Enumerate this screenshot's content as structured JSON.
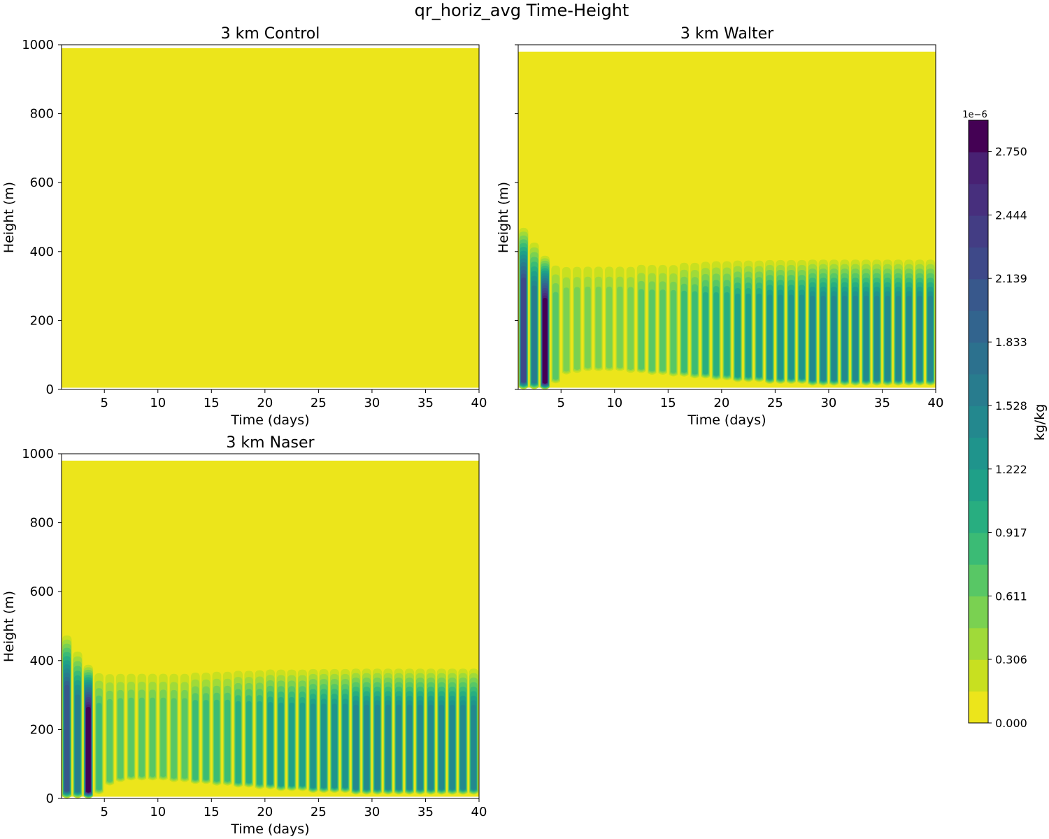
{
  "figure": {
    "title": "qr_horiz_avg Time-Height"
  },
  "colors": {
    "levels": [
      "#ece51b",
      "#c8e020",
      "#a0da39",
      "#7ad151",
      "#58c765",
      "#3bbb75",
      "#28ae80",
      "#1fa088",
      "#1f948c",
      "#23888e",
      "#287c8e",
      "#2c718e",
      "#32648e",
      "#38588c",
      "#3e4989",
      "#433d84",
      "#472f7d",
      "#482173",
      "#440154"
    ],
    "frame": "#000000",
    "background": "#ffffff"
  },
  "chart_data": [
    {
      "type": "contourf",
      "title": "3 km Control",
      "xlabel": "Time (days)",
      "ylabel": "Height (m)",
      "xlim": [
        1,
        40
      ],
      "ylim": [
        0,
        1000
      ],
      "xticks": [
        "5",
        "10",
        "15",
        "20",
        "25",
        "30",
        "35",
        "40"
      ],
      "yticks": [
        "0",
        "200",
        "400",
        "600",
        "800",
        "1000"
      ],
      "show_ytick_labels": true,
      "data_height_range": [
        5,
        990
      ],
      "cycles": []
    },
    {
      "type": "contourf",
      "title": "3 km Walter",
      "xlabel": "Time (days)",
      "ylabel": "Height (m)",
      "xlim": [
        1,
        40
      ],
      "ylim": [
        0,
        1000
      ],
      "xticks": [
        "5",
        "10",
        "15",
        "20",
        "25",
        "30",
        "35",
        "40"
      ],
      "yticks": [
        "0",
        "200",
        "400",
        "600",
        "800",
        "1000"
      ],
      "show_ytick_labels": false,
      "data_height_range": [
        5,
        980
      ],
      "cycles": [
        {
          "day": 1.5,
          "top": 480,
          "base": 5,
          "peak": 14
        },
        {
          "day": 2.5,
          "top": 440,
          "base": 5,
          "peak": 10
        },
        {
          "day": 3.5,
          "top": 395,
          "base": 5,
          "peak": 18
        },
        {
          "day": 4.5,
          "top": 385,
          "base": 20,
          "peak": 4
        },
        {
          "day": 5.5,
          "top": 385,
          "base": 45,
          "peak": 3
        },
        {
          "day": 6.5,
          "top": 385,
          "base": 50,
          "peak": 3
        },
        {
          "day": 7.5,
          "top": 385,
          "base": 55,
          "peak": 3
        },
        {
          "day": 8.5,
          "top": 385,
          "base": 55,
          "peak": 3
        },
        {
          "day": 9.5,
          "top": 385,
          "base": 55,
          "peak": 3
        },
        {
          "day": 10.5,
          "top": 385,
          "base": 55,
          "peak": 3
        },
        {
          "day": 11.5,
          "top": 385,
          "base": 50,
          "peak": 3
        },
        {
          "day": 12.5,
          "top": 385,
          "base": 50,
          "peak": 4
        },
        {
          "day": 13.5,
          "top": 385,
          "base": 45,
          "peak": 4
        },
        {
          "day": 14.5,
          "top": 385,
          "base": 45,
          "peak": 4
        },
        {
          "day": 15.5,
          "top": 385,
          "base": 40,
          "peak": 4
        },
        {
          "day": 16.5,
          "top": 388,
          "base": 40,
          "peak": 5
        },
        {
          "day": 17.5,
          "top": 388,
          "base": 35,
          "peak": 5
        },
        {
          "day": 18.5,
          "top": 388,
          "base": 35,
          "peak": 6
        },
        {
          "day": 19.5,
          "top": 390,
          "base": 30,
          "peak": 6
        },
        {
          "day": 20.5,
          "top": 390,
          "base": 30,
          "peak": 6
        },
        {
          "day": 21.5,
          "top": 390,
          "base": 25,
          "peak": 7
        },
        {
          "day": 22.5,
          "top": 390,
          "base": 25,
          "peak": 7
        },
        {
          "day": 23.5,
          "top": 390,
          "base": 25,
          "peak": 7
        },
        {
          "day": 24.5,
          "top": 390,
          "base": 20,
          "peak": 8
        },
        {
          "day": 25.5,
          "top": 390,
          "base": 20,
          "peak": 8
        },
        {
          "day": 26.5,
          "top": 390,
          "base": 20,
          "peak": 8
        },
        {
          "day": 27.5,
          "top": 390,
          "base": 20,
          "peak": 8
        },
        {
          "day": 28.5,
          "top": 390,
          "base": 15,
          "peak": 9
        },
        {
          "day": 29.5,
          "top": 390,
          "base": 15,
          "peak": 9
        },
        {
          "day": 30.5,
          "top": 390,
          "base": 15,
          "peak": 9
        },
        {
          "day": 31.5,
          "top": 390,
          "base": 15,
          "peak": 9
        },
        {
          "day": 32.5,
          "top": 390,
          "base": 15,
          "peak": 9
        },
        {
          "day": 33.5,
          "top": 390,
          "base": 15,
          "peak": 9
        },
        {
          "day": 34.5,
          "top": 390,
          "base": 15,
          "peak": 9
        },
        {
          "day": 35.5,
          "top": 390,
          "base": 15,
          "peak": 9
        },
        {
          "day": 36.5,
          "top": 390,
          "base": 15,
          "peak": 9
        },
        {
          "day": 37.5,
          "top": 390,
          "base": 15,
          "peak": 9
        },
        {
          "day": 38.5,
          "top": 390,
          "base": 15,
          "peak": 9
        },
        {
          "day": 39.5,
          "top": 390,
          "base": 15,
          "peak": 9
        }
      ]
    },
    {
      "type": "contourf",
      "title": "3 km Naser",
      "xlabel": "Time (days)",
      "ylabel": "Height (m)",
      "xlim": [
        1,
        40
      ],
      "ylim": [
        0,
        1000
      ],
      "xticks": [
        "5",
        "10",
        "15",
        "20",
        "25",
        "30",
        "35",
        "40"
      ],
      "yticks": [
        "0",
        "200",
        "400",
        "600",
        "800",
        "1000"
      ],
      "show_ytick_labels": true,
      "data_height_range": [
        5,
        980
      ],
      "cycles": [
        {
          "day": 1.5,
          "top": 485,
          "base": 5,
          "peak": 13
        },
        {
          "day": 2.5,
          "top": 440,
          "base": 5,
          "peak": 10
        },
        {
          "day": 3.5,
          "top": 395,
          "base": 5,
          "peak": 18
        },
        {
          "day": 4.5,
          "top": 385,
          "base": 15,
          "peak": 5
        },
        {
          "day": 5.5,
          "top": 385,
          "base": 40,
          "peak": 4
        },
        {
          "day": 6.5,
          "top": 385,
          "base": 50,
          "peak": 4
        },
        {
          "day": 7.5,
          "top": 385,
          "base": 55,
          "peak": 4
        },
        {
          "day": 8.5,
          "top": 385,
          "base": 55,
          "peak": 4
        },
        {
          "day": 9.5,
          "top": 385,
          "base": 55,
          "peak": 4
        },
        {
          "day": 10.5,
          "top": 385,
          "base": 55,
          "peak": 4
        },
        {
          "day": 11.5,
          "top": 385,
          "base": 50,
          "peak": 4
        },
        {
          "day": 12.5,
          "top": 385,
          "base": 50,
          "peak": 4
        },
        {
          "day": 13.5,
          "top": 385,
          "base": 45,
          "peak": 5
        },
        {
          "day": 14.5,
          "top": 385,
          "base": 45,
          "peak": 5
        },
        {
          "day": 15.5,
          "top": 388,
          "base": 40,
          "peak": 5
        },
        {
          "day": 16.5,
          "top": 388,
          "base": 40,
          "peak": 5
        },
        {
          "day": 17.5,
          "top": 388,
          "base": 35,
          "peak": 6
        },
        {
          "day": 18.5,
          "top": 388,
          "base": 35,
          "peak": 6
        },
        {
          "day": 19.5,
          "top": 390,
          "base": 30,
          "peak": 6
        },
        {
          "day": 20.5,
          "top": 390,
          "base": 30,
          "peak": 7
        },
        {
          "day": 21.5,
          "top": 390,
          "base": 25,
          "peak": 7
        },
        {
          "day": 22.5,
          "top": 390,
          "base": 25,
          "peak": 7
        },
        {
          "day": 23.5,
          "top": 390,
          "base": 25,
          "peak": 7
        },
        {
          "day": 24.5,
          "top": 390,
          "base": 20,
          "peak": 8
        },
        {
          "day": 25.5,
          "top": 390,
          "base": 20,
          "peak": 8
        },
        {
          "day": 26.5,
          "top": 390,
          "base": 20,
          "peak": 8
        },
        {
          "day": 27.5,
          "top": 390,
          "base": 20,
          "peak": 8
        },
        {
          "day": 28.5,
          "top": 390,
          "base": 15,
          "peak": 9
        },
        {
          "day": 29.5,
          "top": 390,
          "base": 15,
          "peak": 9
        },
        {
          "day": 30.5,
          "top": 390,
          "base": 15,
          "peak": 9
        },
        {
          "day": 31.5,
          "top": 390,
          "base": 15,
          "peak": 9
        },
        {
          "day": 32.5,
          "top": 390,
          "base": 15,
          "peak": 9
        },
        {
          "day": 33.5,
          "top": 390,
          "base": 15,
          "peak": 9
        },
        {
          "day": 34.5,
          "top": 390,
          "base": 15,
          "peak": 9
        },
        {
          "day": 35.5,
          "top": 390,
          "base": 15,
          "peak": 9
        },
        {
          "day": 36.5,
          "top": 390,
          "base": 15,
          "peak": 9
        },
        {
          "day": 37.5,
          "top": 390,
          "base": 15,
          "peak": 9
        },
        {
          "day": 38.5,
          "top": 390,
          "base": 15,
          "peak": 9
        },
        {
          "day": 39.5,
          "top": 390,
          "base": 15,
          "peak": 9
        }
      ]
    }
  ],
  "colorbar": {
    "label": "kg/kg",
    "offset_text": "1e−6",
    "range": [
      0,
      2.9
    ],
    "ticks": [
      "0.000",
      "0.306",
      "0.611",
      "0.917",
      "1.222",
      "1.528",
      "1.833",
      "2.139",
      "2.444",
      "2.750"
    ],
    "tick_values": [
      0.0,
      0.306,
      0.611,
      0.917,
      1.222,
      1.528,
      1.833,
      2.139,
      2.444,
      2.75
    ]
  }
}
